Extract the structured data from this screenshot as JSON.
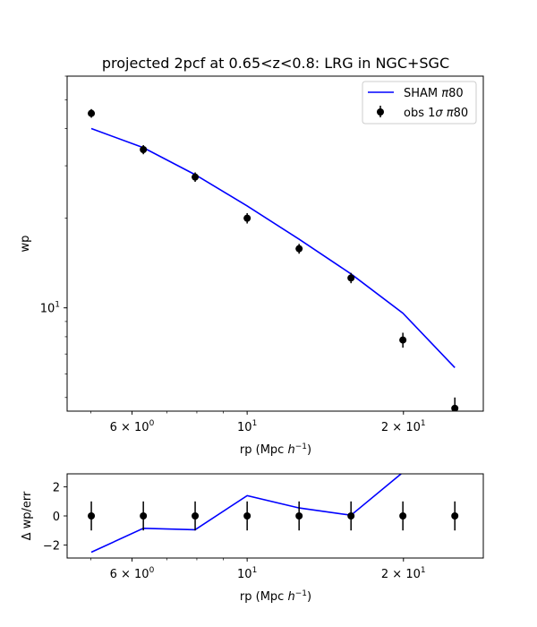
{
  "chart_data": [
    {
      "type": "scatter",
      "title": "projected 2pcf at 0.65<z<0.8: LRG in NGC+SGC",
      "xlabel": "rp (Mpc $h^{-1}$)",
      "xlabel_parts": {
        "base": "rp (Mpc ",
        "var": "h",
        "sup": "−1",
        "tail": ")"
      },
      "ylabel": "wp",
      "xscale": "log",
      "yscale": "log",
      "xlim": [
        4.5,
        28.5
      ],
      "ylim": [
        4.5,
        60
      ],
      "x_ticks": [
        {
          "value": 6,
          "base": "6 × 10",
          "exp": "0"
        },
        {
          "value": 10,
          "base": "10",
          "exp": "1"
        },
        {
          "value": 20,
          "base": "2 × 10",
          "exp": "1"
        }
      ],
      "y_ticks": [
        {
          "value": 10,
          "base": "10",
          "exp": "1"
        }
      ],
      "legend": {
        "position": "top-right",
        "entries": [
          {
            "label_base": "SHAM ",
            "label_sym": "π",
            "label_tail": "80",
            "kind": "line",
            "color": "#0000ff"
          },
          {
            "label_base": "obs 1",
            "label_sym": "σ",
            "label_mid": " ",
            "label_sym2": "π",
            "label_tail": "80",
            "kind": "errorbar",
            "color": "#000000"
          }
        ]
      },
      "series": [
        {
          "name": "SHAM π80",
          "kind": "line",
          "color": "#0000ff",
          "x": [
            5.01,
            6.31,
            7.94,
            10.0,
            12.59,
            15.85,
            19.95,
            25.12
          ],
          "y": [
            40.0,
            34.5,
            28.0,
            22.0,
            17.0,
            13.0,
            9.6,
            6.3
          ]
        },
        {
          "name": "obs 1σ π80",
          "kind": "errorbar",
          "color": "#000000",
          "x": [
            5.01,
            6.31,
            7.94,
            10.0,
            12.59,
            15.85,
            19.95,
            25.12
          ],
          "y": [
            45.0,
            34.0,
            27.5,
            20.0,
            15.8,
            12.6,
            7.8,
            4.6
          ],
          "yerr_low": [
            1.5,
            1.2,
            1.0,
            0.8,
            0.6,
            0.5,
            0.45,
            0.4
          ],
          "yerr_high": [
            1.5,
            1.2,
            1.0,
            0.8,
            0.6,
            0.5,
            0.45,
            0.4
          ]
        }
      ]
    },
    {
      "type": "scatter",
      "title": "",
      "xlabel": "rp (Mpc $h^{-1}$)",
      "xlabel_parts": {
        "base": "rp (Mpc ",
        "var": "h",
        "sup": "−1",
        "tail": ")"
      },
      "ylabel": "Δ wp/err",
      "xscale": "log",
      "xlim": [
        4.5,
        28.5
      ],
      "ylim": [
        -2.9,
        2.9
      ],
      "x_ticks": [
        {
          "value": 6,
          "base": "6 × 10",
          "exp": "0"
        },
        {
          "value": 10,
          "base": "10",
          "exp": "1"
        },
        {
          "value": 20,
          "base": "2 × 10",
          "exp": "1"
        }
      ],
      "y_ticks": [
        {
          "value": 2,
          "label": "2"
        },
        {
          "value": 0,
          "label": "0"
        },
        {
          "value": -2,
          "label": "−2"
        }
      ],
      "series": [
        {
          "kind": "line",
          "color": "#0000ff",
          "x": [
            5.01,
            6.31,
            7.94,
            10.0,
            12.59,
            15.85,
            19.95,
            25.12
          ],
          "y": [
            -2.5,
            -0.85,
            -0.95,
            1.4,
            0.55,
            0.05,
            3.0,
            3.0
          ]
        },
        {
          "kind": "errorbar",
          "color": "#000000",
          "x": [
            5.01,
            6.31,
            7.94,
            10.0,
            12.59,
            15.85,
            19.95,
            25.12
          ],
          "y": [
            0,
            0,
            0,
            0,
            0,
            0,
            0,
            0
          ],
          "yerr_low": [
            1,
            1,
            1,
            1,
            1,
            1,
            1,
            1
          ],
          "yerr_high": [
            1,
            1,
            1,
            1,
            1,
            1,
            1,
            1
          ]
        }
      ]
    }
  ]
}
